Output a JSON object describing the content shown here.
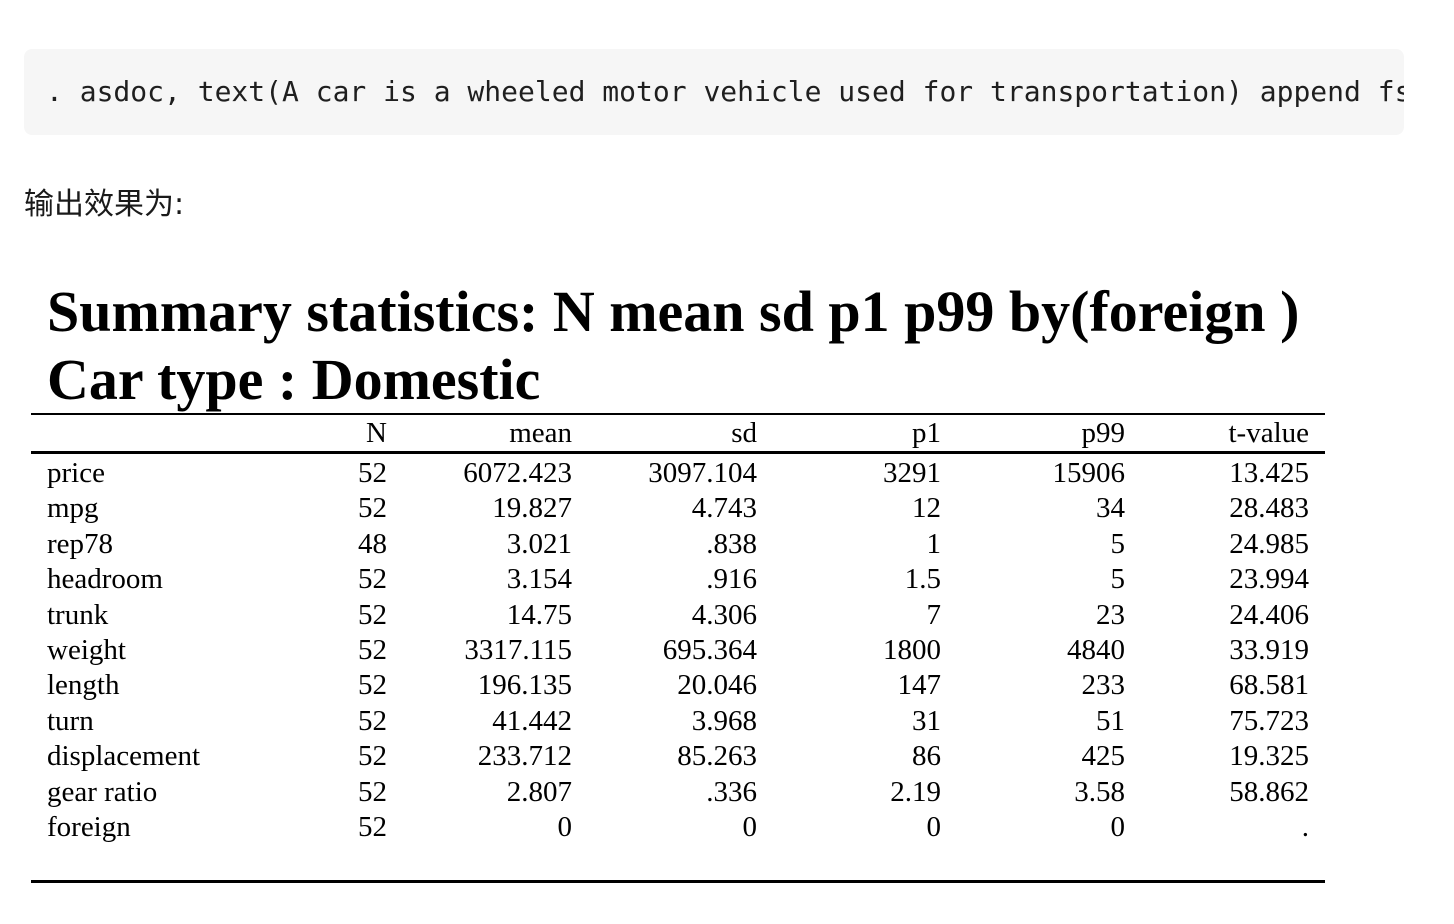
{
  "code": {
    "command": ". asdoc, text(A car is a wheeled motor vehicle used for transportation) append fs"
  },
  "output_label": "输出效果为:",
  "report": {
    "title_line1": "Summary statistics: N mean sd p1 p99 by(foreign )",
    "title_line2": "Car type : Domestic",
    "columns": [
      "N",
      "mean",
      "sd",
      "p1",
      "p99",
      "t-value"
    ],
    "rows": [
      {
        "var": "price",
        "N": "52",
        "mean": "6072.423",
        "sd": "3097.104",
        "p1": "3291",
        "p99": "15906",
        "t": "13.425"
      },
      {
        "var": "mpg",
        "N": "52",
        "mean": "19.827",
        "sd": "4.743",
        "p1": "12",
        "p99": "34",
        "t": "28.483"
      },
      {
        "var": "rep78",
        "N": "48",
        "mean": "3.021",
        "sd": ".838",
        "p1": "1",
        "p99": "5",
        "t": "24.985"
      },
      {
        "var": "headroom",
        "N": "52",
        "mean": "3.154",
        "sd": ".916",
        "p1": "1.5",
        "p99": "5",
        "t": "23.994"
      },
      {
        "var": "trunk",
        "N": "52",
        "mean": "14.75",
        "sd": "4.306",
        "p1": "7",
        "p99": "23",
        "t": "24.406"
      },
      {
        "var": "weight",
        "N": "52",
        "mean": "3317.115",
        "sd": "695.364",
        "p1": "1800",
        "p99": "4840",
        "t": "33.919"
      },
      {
        "var": "length",
        "N": "52",
        "mean": "196.135",
        "sd": "20.046",
        "p1": "147",
        "p99": "233",
        "t": "68.581"
      },
      {
        "var": "turn",
        "N": "52",
        "mean": "41.442",
        "sd": "3.968",
        "p1": "31",
        "p99": "51",
        "t": "75.723"
      },
      {
        "var": "displacement",
        "N": "52",
        "mean": "233.712",
        "sd": "85.263",
        "p1": "86",
        "p99": "425",
        "t": "19.325"
      },
      {
        "var": "gear ratio",
        "N": "52",
        "mean": "2.807",
        "sd": ".336",
        "p1": "2.19",
        "p99": "3.58",
        "t": "58.862"
      },
      {
        "var": "foreign",
        "N": "52",
        "mean": "0",
        "sd": "0",
        "p1": "0",
        "p99": "0",
        "t": "."
      }
    ]
  }
}
